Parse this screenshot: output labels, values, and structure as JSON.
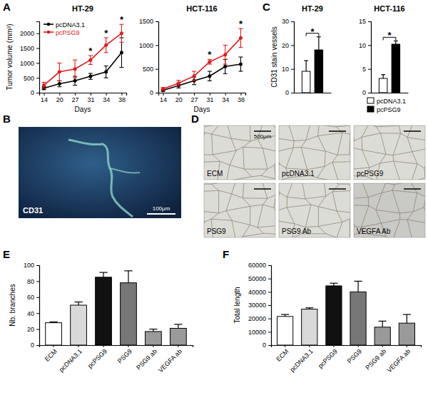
{
  "panels": [
    "A",
    "B",
    "C",
    "D",
    "E",
    "F"
  ],
  "chart_data": [
    {
      "type": "line",
      "title": "HT-29",
      "x_label": "Days",
      "y_label": "Tumor volume (mm³)",
      "categories": [
        "14",
        "20",
        "27",
        "31",
        "34",
        "38"
      ],
      "ylim": [
        0,
        2400
      ],
      "yticks": [
        0,
        500,
        1000,
        1500,
        2000
      ],
      "legend": "upper left",
      "series": [
        {
          "name": "pcDNA3.1",
          "color": "#000000",
          "marker": "circle",
          "values": [
            150,
            300,
            400,
            550,
            700,
            1350
          ],
          "errors": [
            50,
            100,
            150,
            100,
            200,
            500
          ]
        },
        {
          "name": "pcPSG9",
          "color": "#e41a1c",
          "marker": "circle",
          "values": [
            250,
            700,
            800,
            1100,
            1600,
            2000
          ],
          "errors": [
            100,
            300,
            300,
            150,
            250,
            300
          ]
        }
      ],
      "annotations": [
        {
          "category": "31",
          "text": "*"
        },
        {
          "category": "34",
          "text": "*"
        },
        {
          "category": "38",
          "text": "*"
        }
      ]
    },
    {
      "type": "line",
      "title": "HCT-116",
      "x_label": "Days",
      "categories": [
        "14",
        "20",
        "27",
        "31",
        "34",
        "38"
      ],
      "ylim": [
        0,
        1500
      ],
      "yticks": [
        0,
        500,
        1000,
        1500
      ],
      "series": [
        {
          "color": "#000000",
          "marker": "circle",
          "values": [
            50,
            150,
            250,
            350,
            550,
            600
          ],
          "errors": [
            20,
            50,
            80,
            100,
            150,
            150
          ]
        },
        {
          "color": "#e41a1c",
          "marker": "circle",
          "values": [
            80,
            200,
            350,
            650,
            800,
            1150
          ],
          "errors": [
            30,
            60,
            100,
            50,
            200,
            200
          ]
        }
      ],
      "annotations": [
        {
          "category": "31",
          "text": "*"
        },
        {
          "category": "38",
          "text": "*"
        }
      ]
    },
    {
      "type": "bar",
      "title": "HT-29",
      "y_label": "CD31 stain vessels",
      "categories": [
        null
      ],
      "tick_labels": "y",
      "ylim": [
        0,
        30
      ],
      "yticks": [
        0,
        10,
        20,
        30
      ],
      "series": [
        {
          "color": "#ffffff",
          "values": [
            9
          ],
          "errors": [
            4.5
          ]
        },
        {
          "color": "#000000",
          "values": [
            18
          ],
          "errors": [
            5.5
          ]
        }
      ],
      "annotations": [
        {
          "text": "*"
        }
      ]
    },
    {
      "type": "bar",
      "title": "HCT-116",
      "categories": [
        null
      ],
      "tick_labels": "y",
      "legend": "bottom",
      "ylim": [
        0,
        15
      ],
      "yticks": [
        0,
        5,
        10,
        15
      ],
      "series": [
        {
          "name": "pcDNA3.1",
          "color": "#ffffff",
          "values": [
            3
          ],
          "errors": [
            0.8
          ]
        },
        {
          "name": "pcPSG9",
          "color": "#000000",
          "values": [
            10.2
          ],
          "errors": [
            0.7
          ]
        }
      ],
      "annotations": [
        {
          "text": "*"
        }
      ]
    },
    {
      "type": "bar",
      "y_label": "Nb. branches",
      "categories": [
        "ECM",
        "pcDNA3.1",
        "pcPSG9",
        "PSG9",
        "PSG9 ab",
        "VEGFA ab"
      ],
      "ylim": [
        0,
        100
      ],
      "yticks": [
        0,
        20,
        40,
        60,
        80,
        100
      ],
      "series": [
        {
          "colors": [
            "#ffffff",
            "#d9d9d9",
            "#111111",
            "#777777",
            "#9a9a9a",
            "#9a9a9a"
          ],
          "values": [
            28,
            50,
            85,
            78,
            17,
            21
          ],
          "errors": [
            1,
            4,
            6,
            15,
            3,
            5
          ]
        }
      ]
    },
    {
      "type": "bar",
      "y_label": "Total length",
      "categories": [
        "ECM",
        "pcDNA3.1",
        "pcPSG9",
        "PSG9",
        "PSG9 ab",
        "VEGFA ab"
      ],
      "ylim": [
        0,
        60000
      ],
      "yticks": [
        0,
        10000,
        20000,
        30000,
        40000,
        50000,
        60000
      ],
      "series": [
        {
          "colors": [
            "#ffffff",
            "#d9d9d9",
            "#111111",
            "#777777",
            "#9a9a9a",
            "#9a9a9a"
          ],
          "values": [
            21500,
            27000,
            44500,
            40000,
            13500,
            16500
          ],
          "errors": [
            1500,
            1000,
            2000,
            8000,
            4500,
            6500
          ]
        }
      ]
    }
  ],
  "images": {
    "B": {
      "label": "CD31",
      "scale": "100μm"
    },
    "D": {
      "labels": [
        "ECM",
        "pcDNA3.1",
        "pcPSG9",
        "PSG9",
        "PSG9 Ab",
        "VEGFA Ab"
      ],
      "scale": "500μm"
    }
  }
}
